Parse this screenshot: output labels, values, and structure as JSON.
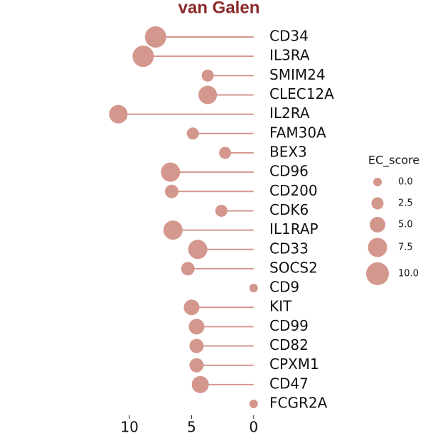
{
  "chart_data": {
    "type": "lollipop",
    "title": "van Galen",
    "categories": [
      "CD34",
      "IL3RA",
      "SMIM24",
      "CLEC12A",
      "IL2RA",
      "FAM30A",
      "BEX3",
      "CD96",
      "CD200",
      "CDK6",
      "IL1RAP",
      "CD33",
      "SOCS2",
      "CD9",
      "KIT",
      "CD99",
      "CD82",
      "CPXM1",
      "CD47",
      "FCGR2A"
    ],
    "values": [
      7.9,
      8.9,
      3.7,
      3.7,
      10.9,
      4.9,
      2.3,
      6.7,
      6.6,
      2.6,
      6.5,
      4.5,
      5.3,
      0,
      5.0,
      4.6,
      4.6,
      4.6,
      4.3,
      0
    ],
    "sizes": [
      9,
      9,
      2.5,
      7,
      7,
      2.5,
      2.5,
      7.5,
      3.5,
      2.5,
      7.5,
      7.5,
      3.5,
      0,
      5,
      5,
      4,
      4,
      6,
      0
    ],
    "color": "#d4978d",
    "xlim": [
      11.5,
      -0.3
    ],
    "xticks": [
      10,
      5,
      0
    ],
    "size_legend": {
      "title": "EC_score",
      "entries": [
        {
          "value": 0,
          "label": "0.0"
        },
        {
          "value": 2.5,
          "label": "2.5"
        },
        {
          "value": 5,
          "label": "5.0"
        },
        {
          "value": 7.5,
          "label": "7.5"
        },
        {
          "value": 10,
          "label": "10.0"
        }
      ]
    }
  }
}
